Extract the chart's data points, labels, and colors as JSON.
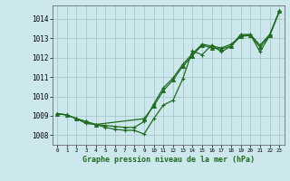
{
  "xlabel": "Graphe pression niveau de la mer (hPa)",
  "background_color": "#cde8ec",
  "grid_color": "#a8c8cc",
  "line_color": "#1e6b1e",
  "ylim": [
    1007.5,
    1014.7
  ],
  "xlim": [
    -0.5,
    23.5
  ],
  "yticks": [
    1008,
    1009,
    1010,
    1011,
    1012,
    1013,
    1014
  ],
  "xticks": [
    0,
    1,
    2,
    3,
    4,
    5,
    6,
    7,
    8,
    9,
    10,
    11,
    12,
    13,
    14,
    15,
    16,
    17,
    18,
    19,
    20,
    21,
    22,
    23
  ],
  "line1_x": [
    0,
    1,
    2,
    3,
    4,
    5,
    6,
    7,
    8,
    9,
    10,
    11,
    12,
    13,
    14,
    15,
    16,
    17,
    18,
    19,
    20,
    21,
    22,
    23
  ],
  "line1_y": [
    1009.1,
    1009.05,
    1008.85,
    1008.6,
    1008.55,
    1008.4,
    1008.3,
    1008.25,
    1008.25,
    1008.05,
    1008.85,
    1009.55,
    1009.8,
    1010.9,
    1012.35,
    1012.15,
    1012.65,
    1012.3,
    1012.6,
    1013.2,
    1013.2,
    1012.3,
    1013.15,
    1014.4
  ],
  "line2_x": [
    0,
    1,
    2,
    3,
    4,
    9,
    10,
    11,
    12,
    13,
    14,
    15,
    16,
    17,
    18,
    19,
    20,
    21,
    22,
    23
  ],
  "line2_y": [
    1009.1,
    1009.05,
    1008.85,
    1008.7,
    1008.55,
    1008.85,
    1009.5,
    1010.3,
    1010.85,
    1011.55,
    1012.1,
    1012.65,
    1012.5,
    1012.45,
    1012.6,
    1013.1,
    1013.15,
    1012.55,
    1013.15,
    1014.4
  ],
  "line3_x": [
    0,
    1,
    2,
    3,
    4,
    5,
    6,
    7,
    8,
    9,
    10,
    11,
    12,
    13,
    14,
    15,
    16,
    17,
    18,
    19,
    20,
    21,
    22,
    23
  ],
  "line3_y": [
    1009.1,
    1009.05,
    1008.85,
    1008.7,
    1008.55,
    1008.5,
    1008.45,
    1008.4,
    1008.4,
    1008.7,
    1009.6,
    1010.45,
    1010.95,
    1011.65,
    1012.2,
    1012.7,
    1012.6,
    1012.5,
    1012.7,
    1013.1,
    1013.2,
    1012.65,
    1013.2,
    1014.4
  ]
}
